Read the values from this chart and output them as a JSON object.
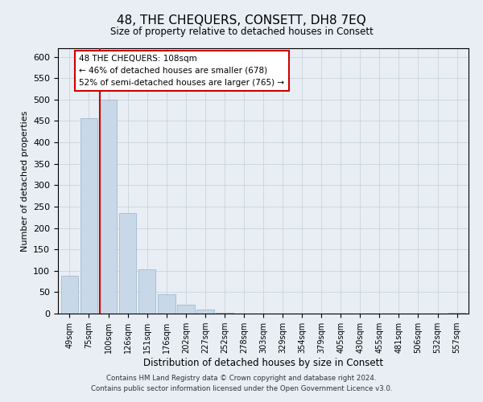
{
  "title": "48, THE CHEQUERS, CONSETT, DH8 7EQ",
  "subtitle": "Size of property relative to detached houses in Consett",
  "xlabel": "Distribution of detached houses by size in Consett",
  "ylabel": "Number of detached properties",
  "bar_labels": [
    "49sqm",
    "75sqm",
    "100sqm",
    "126sqm",
    "151sqm",
    "176sqm",
    "202sqm",
    "227sqm",
    "252sqm",
    "278sqm",
    "303sqm",
    "329sqm",
    "354sqm",
    "379sqm",
    "405sqm",
    "430sqm",
    "455sqm",
    "481sqm",
    "506sqm",
    "532sqm",
    "557sqm"
  ],
  "bar_values": [
    88,
    456,
    500,
    234,
    104,
    45,
    20,
    10,
    2,
    0,
    0,
    0,
    0,
    0,
    0,
    0,
    0,
    0,
    0,
    0,
    2
  ],
  "bar_color": "#c8d8e8",
  "bar_edge_color": "#a0bcd0",
  "vline_color": "#cc0000",
  "ylim": [
    0,
    620
  ],
  "yticks": [
    0,
    50,
    100,
    150,
    200,
    250,
    300,
    350,
    400,
    450,
    500,
    550,
    600
  ],
  "annotation_title": "48 THE CHEQUERS: 108sqm",
  "annotation_line1": "← 46% of detached houses are smaller (678)",
  "annotation_line2": "52% of semi-detached houses are larger (765) →",
  "footer_line1": "Contains HM Land Registry data © Crown copyright and database right 2024.",
  "footer_line2": "Contains public sector information licensed under the Open Government Licence v3.0.",
  "bg_color": "#e8eef4",
  "plot_bg_color": "#e8eef4",
  "grid_color": "#c8d4de"
}
